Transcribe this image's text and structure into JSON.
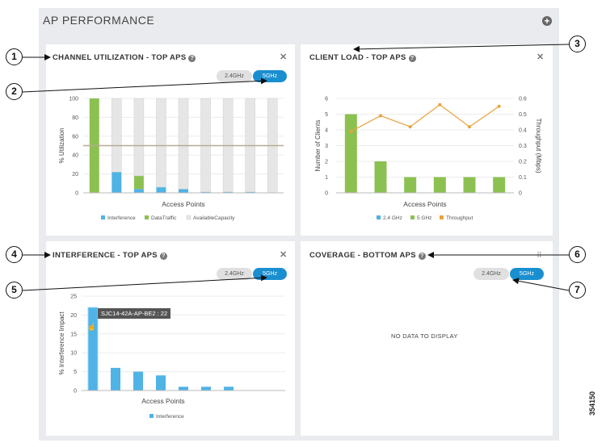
{
  "dashboard": {
    "title": "AP PERFORMANCE"
  },
  "channel_panel": {
    "title": "CHANNEL UTILIZATION - TOP APS",
    "toggle_24": "2.4GHz",
    "toggle_5": "5GHz",
    "xlabel": "Access Points",
    "ylabel": "% Utilization",
    "legend": [
      "Interference",
      "DataTraffic",
      "AvailableCapacity"
    ]
  },
  "client_panel": {
    "title": "CLIENT LOAD - TOP APS",
    "xlabel": "Access Points",
    "ylabel_left": "Number of Clients",
    "ylabel_right": "Throughput (Mbps)",
    "legend": [
      "2.4 GHz",
      "5 GHz",
      "Throughput"
    ]
  },
  "interference_panel": {
    "title": "INTERFERENCE - TOP APS",
    "toggle_24": "2.4GHz",
    "toggle_5": "5GHz",
    "xlabel": "Access Points",
    "ylabel": "% Interference Impact",
    "legend": [
      "Interference"
    ],
    "tooltip": "SJC14-42A-AP-BE2 : 22"
  },
  "coverage_panel": {
    "title": "COVERAGE - BOTTOM APS",
    "toggle_24": "2.4GHz",
    "toggle_5": "5GHz",
    "no_data": "NO DATA TO DISPLAY"
  },
  "callouts": [
    "1",
    "2",
    "3",
    "4",
    "5",
    "6",
    "7"
  ],
  "figure_id": "354150",
  "colors": {
    "interference": "#4fb3e6",
    "data_traffic": "#8cc152",
    "available_capacity": "#e6e6e6",
    "throughput": "#e8a33d",
    "toggle_active": "#1a8fd0",
    "threshold_line": "#b5ab94"
  },
  "chart_data": [
    {
      "type": "bar",
      "name": "channel_utilization",
      "ylim": [
        0,
        100
      ],
      "yticks": [
        0,
        20,
        40,
        60,
        80,
        100
      ],
      "threshold": 50,
      "series": [
        {
          "name": "Interference",
          "values": [
            0,
            22,
            4,
            6,
            4,
            1,
            1,
            1,
            0
          ]
        },
        {
          "name": "DataTraffic",
          "values": [
            100,
            0,
            14,
            0,
            0,
            0,
            0,
            0,
            0
          ]
        },
        {
          "name": "AvailableCapacity",
          "values": [
            0,
            78,
            82,
            94,
            96,
            99,
            99,
            99,
            100
          ]
        }
      ]
    },
    {
      "type": "bar",
      "name": "client_load",
      "ylim": [
        0,
        6
      ],
      "yticks": [
        0,
        1,
        2,
        3,
        4,
        5,
        6
      ],
      "ylim_right": [
        0,
        0.6
      ],
      "yticks_right": [
        "0",
        "0.1",
        "0.2",
        "0.3",
        "0.4",
        "0.5",
        "0.6"
      ],
      "series": [
        {
          "name": "2.4 GHz",
          "values": [
            0,
            0,
            0,
            0,
            0,
            0
          ]
        },
        {
          "name": "5 GHz",
          "values": [
            5,
            2,
            1,
            1,
            1,
            1
          ]
        },
        {
          "name": "Throughput",
          "values": [
            0.39,
            0.49,
            0.42,
            0.56,
            0.42,
            0.55
          ]
        }
      ]
    },
    {
      "type": "bar",
      "name": "interference",
      "ylim": [
        0,
        25
      ],
      "yticks": [
        0,
        5,
        10,
        15,
        20,
        25
      ],
      "series": [
        {
          "name": "Interference",
          "values": [
            22,
            6,
            5,
            4,
            1,
            1,
            1
          ]
        }
      ]
    }
  ]
}
